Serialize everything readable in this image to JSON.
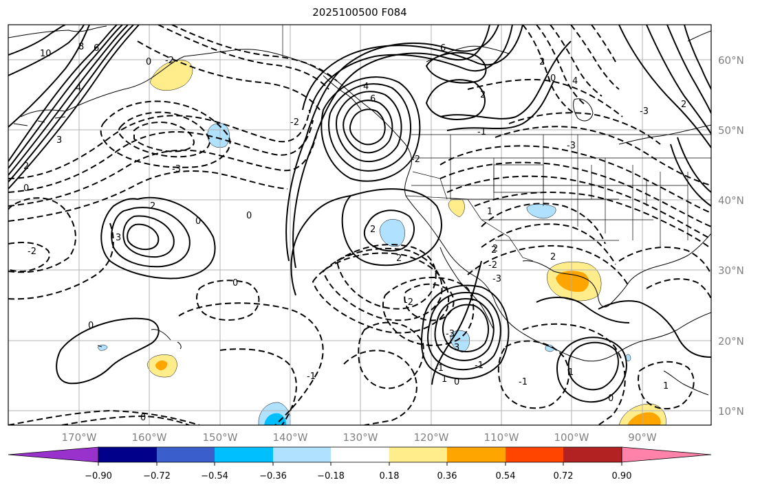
{
  "title": "2025100500 F084",
  "lat_labels": [
    "60°N",
    "50°N",
    "40°N",
    "30°N",
    "20°N",
    "10°N"
  ],
  "lon_labels": [
    "170°W",
    "160°W",
    "150°W",
    "140°W",
    "130°W",
    "120°W",
    "110°W",
    "100°W",
    "90°W"
  ],
  "colorbar": {
    "ticks": [
      "−0.90",
      "−0.72",
      "−0.54",
      "−0.36",
      "−0.18",
      "0.18",
      "0.36",
      "0.54",
      "0.72",
      "0.90"
    ],
    "colors": [
      "#9932cc",
      "#00008b",
      "#3a5fcd",
      "#00bfff",
      "#b0e2ff",
      "#ffffff",
      "#ffec8b",
      "#ffa500",
      "#ff4500",
      "#b22222",
      "#ff82ab"
    ]
  },
  "contour_labels": [
    "10",
    "8",
    "6",
    "4",
    "3",
    "2",
    "0",
    "-2",
    "-3",
    "0",
    "-2",
    "3",
    "2",
    "0",
    "0",
    "-2",
    "0",
    "0",
    "6",
    "4",
    "2",
    "2",
    "-2",
    "-2",
    "3",
    "-3",
    "-2",
    "2",
    "-3",
    "1",
    "-1",
    "0",
    "-1",
    "-1",
    "1",
    "0",
    "-1",
    "0",
    "1",
    "2",
    "2",
    "-1",
    "2",
    "6",
    "2",
    "0",
    "4",
    "-3",
    "2",
    "-3",
    "1"
  ]
}
